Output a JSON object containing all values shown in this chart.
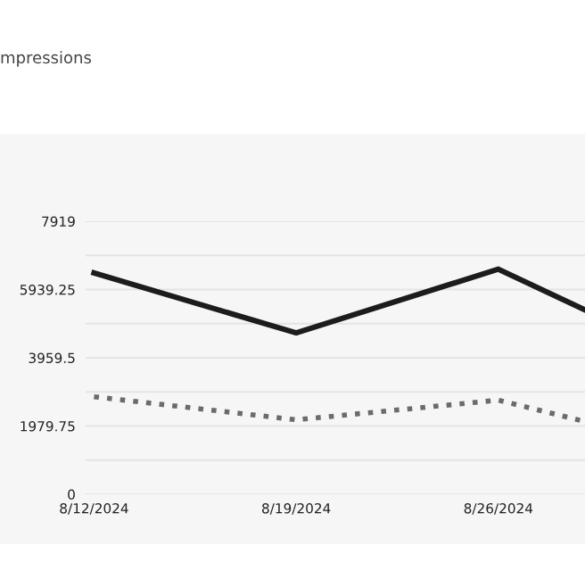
{
  "chart_data": {
    "type": "line",
    "annotations": [
      "mpressions"
    ],
    "x": [
      "2024-08-12",
      "2024-08-19",
      "2024-08-26",
      "2024-08-29"
    ],
    "series": [
      {
        "color": "#1c1c1c",
        "line_style": "solid",
        "values": [
          6420,
          4680,
          6530,
          5350
        ]
      },
      {
        "color": "#6b6b6b",
        "line_style": "dotted",
        "values": [
          2830,
          2160,
          2730,
          2110
        ]
      }
    ],
    "xlim": [
      "2024-08-11T17:00",
      "2024-08-29"
    ],
    "xticks": [
      {
        "value": "2024-08-12",
        "label": "8/12/2024"
      },
      {
        "value": "2024-08-19",
        "label": "8/19/2024"
      },
      {
        "value": "2024-08-26",
        "label": "8/26/2024"
      }
    ],
    "ylim": [
      0,
      7919
    ],
    "yticks": [
      0,
      {
        "value": 989.875,
        "label": null
      },
      1979.75,
      {
        "value": 2969.625,
        "label": null
      },
      3959.5,
      {
        "value": 4949.375,
        "label": null
      },
      5939.25,
      {
        "value": 6929.125,
        "label": null
      },
      7919
    ],
    "grid": "y",
    "legend": false,
    "marker": "none"
  }
}
